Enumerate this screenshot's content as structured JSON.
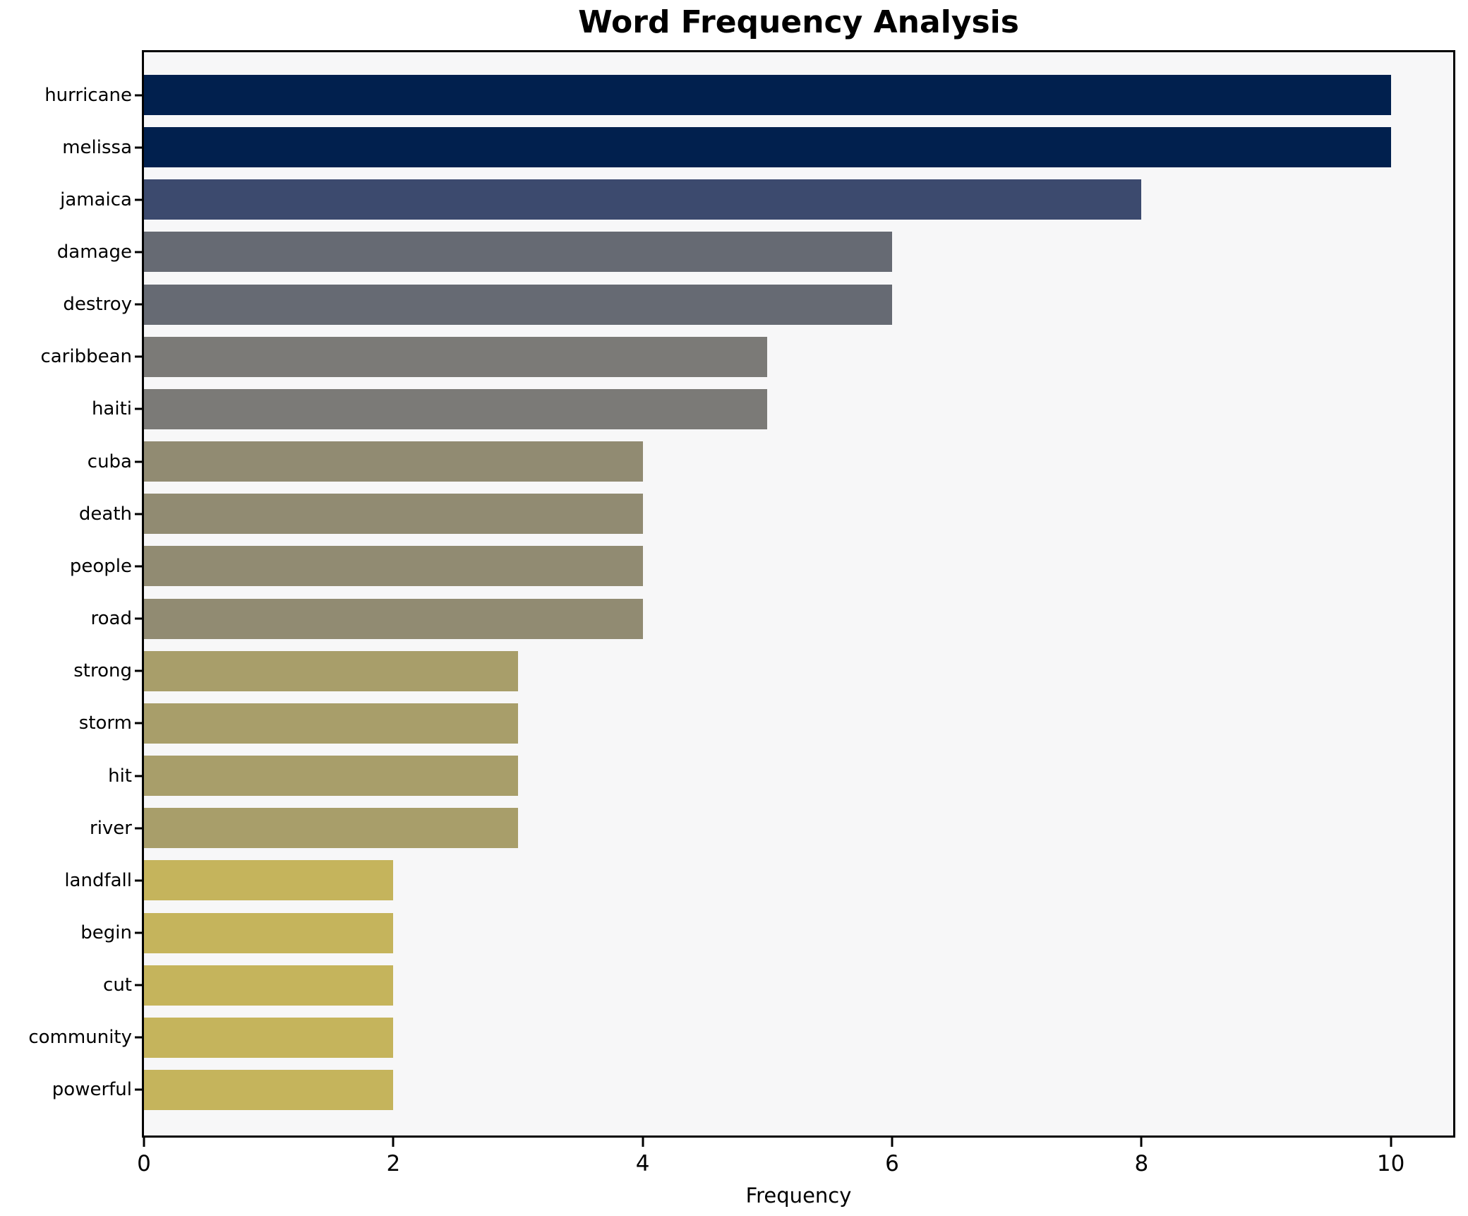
{
  "chart_data": {
    "type": "bar",
    "orientation": "horizontal",
    "title": "Word Frequency Analysis",
    "xlabel": "Frequency",
    "ylabel": "",
    "categories": [
      "hurricane",
      "melissa",
      "jamaica",
      "damage",
      "destroy",
      "caribbean",
      "haiti",
      "cuba",
      "death",
      "people",
      "road",
      "strong",
      "storm",
      "hit",
      "river",
      "landfall",
      "begin",
      "cut",
      "community",
      "powerful"
    ],
    "values": [
      10,
      10,
      8,
      6,
      6,
      5,
      5,
      4,
      4,
      4,
      4,
      3,
      3,
      3,
      3,
      2,
      2,
      2,
      2,
      2
    ],
    "bar_colors": [
      "#01204e",
      "#01204e",
      "#3c4a6e",
      "#666a73",
      "#666a73",
      "#7b7a77",
      "#7b7a77",
      "#918b72",
      "#918b72",
      "#918b72",
      "#918b72",
      "#a89e6a",
      "#a89e6a",
      "#a89e6a",
      "#a89e6a",
      "#c5b45c",
      "#c5b45c",
      "#c5b45c",
      "#c5b45c",
      "#c5b45c"
    ],
    "xlim": [
      0,
      10.5
    ],
    "x_ticks": [
      0,
      2,
      4,
      6,
      8,
      10
    ],
    "grid": false,
    "legend": "none",
    "colors": {
      "figure_bg": "#ffffff",
      "plot_bg": "#f7f7f8",
      "spine": "#000000",
      "text": "#000000"
    }
  }
}
